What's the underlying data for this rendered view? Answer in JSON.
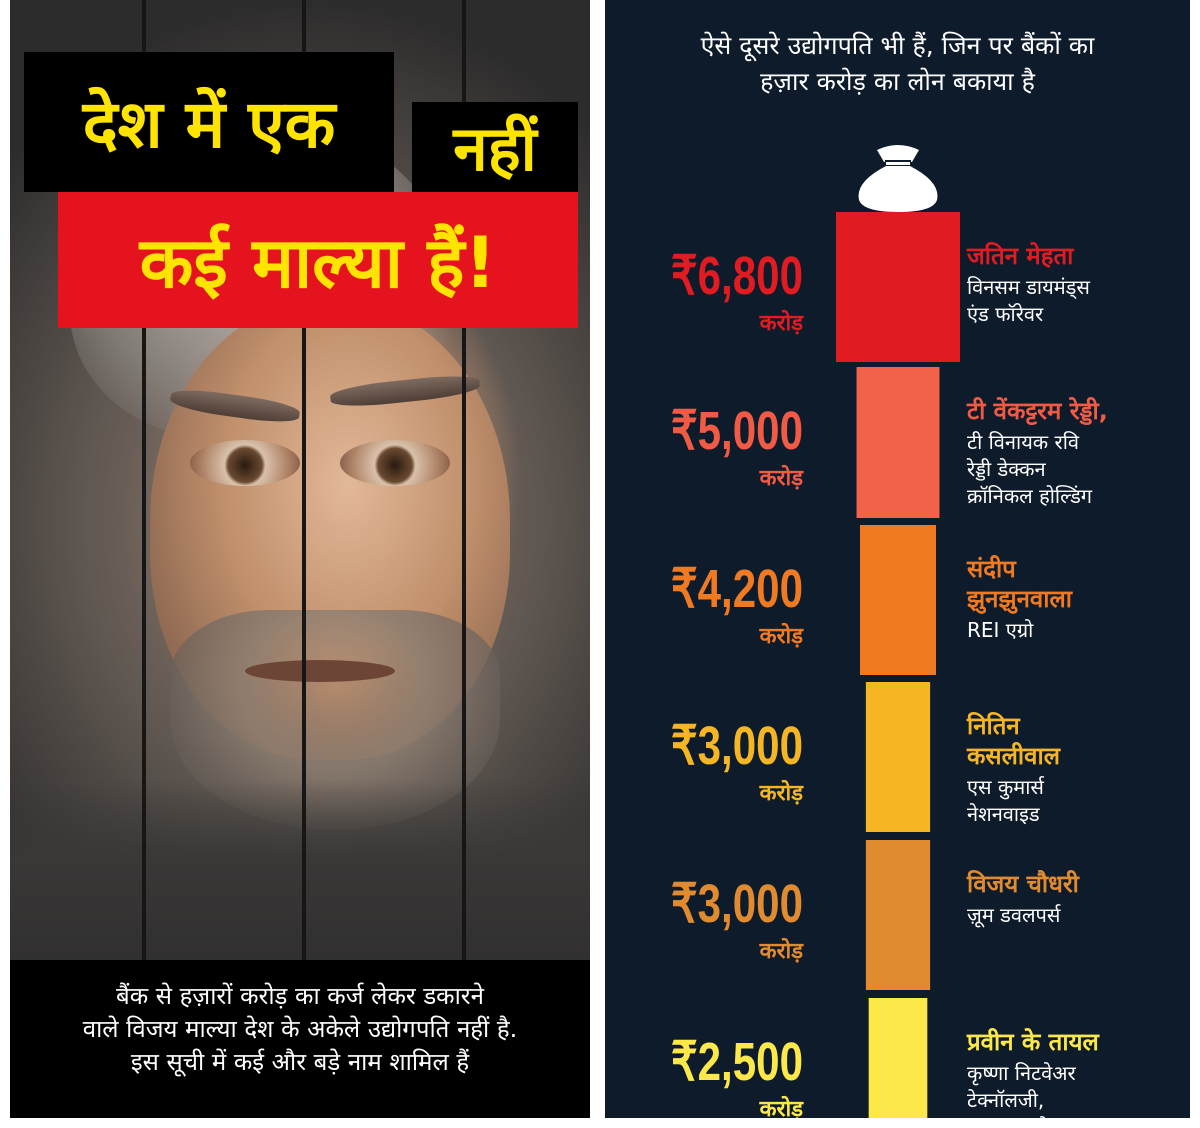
{
  "left": {
    "headline": {
      "line1": "देश में एक",
      "line2": "नहीं",
      "line3": "कई माल्या हैं!"
    },
    "caption": {
      "line1": "बैंक से हज़ारों करोड़ का कर्ज लेकर डकारने",
      "line2": "वाले विजय माल्या देश के अकेले उद्योगपति नहीं है.",
      "line3": "इस सूची में कई और बड़े नाम शामिल हैं"
    },
    "colors": {
      "headline_text": "#ffe400",
      "red_box": "#e5131e"
    },
    "photo_icon": "man-portrait"
  },
  "right": {
    "header": {
      "line1": "ऐसे दूसरे उद्योगपति भी हैं, जिन पर बैंकों का",
      "line2": "हज़ार करोड़ का लोन बकाया है"
    },
    "top_icon": "money-bag-icon"
  },
  "chart_data": {
    "type": "bar",
    "orientation": "vertical-stack",
    "unit_label": "करोड़",
    "currency_symbol": "₹",
    "items": [
      {
        "value": 6800,
        "amount": "₹6,800",
        "unit": "करोड़",
        "name": [
          "जतिन मेहता"
        ],
        "company": [
          "विनसम डायमंड्स",
          "एंड फॉरेवर"
        ],
        "color": "#e11b22",
        "amount_color": "#e11b22"
      },
      {
        "value": 5000,
        "amount": "₹5,000",
        "unit": "करोड़",
        "name": [
          "टी वेंकट्टरम रेड्डी,"
        ],
        "company": [
          "टी विनायक रवि",
          "रेड्डी डेक्कन",
          "क्रॉनिकल होल्डिंग"
        ],
        "color": "#f26149",
        "amount_color": "#f15a44"
      },
      {
        "value": 4200,
        "amount": "₹4,200",
        "unit": "करोड़",
        "name": [
          "संदीप",
          "झुनझुनवाला"
        ],
        "company": [
          "REI एग्रो"
        ],
        "color": "#f07a21",
        "amount_color": "#f07a21"
      },
      {
        "value": 3000,
        "amount": "₹3,000",
        "unit": "करोड़",
        "name": [
          "नितिन",
          "कसलीवाल"
        ],
        "company": [
          "एस कुमार्स",
          "नेशनवाइड"
        ],
        "color": "#f6b624",
        "amount_color": "#f6b624"
      },
      {
        "value": 3000,
        "amount": "₹3,000",
        "unit": "करोड़",
        "name": [
          "विजय चौधरी"
        ],
        "company": [
          "ज़ूम डवलपर्स"
        ],
        "color": "#e08b30",
        "amount_color": "#e08b30"
      },
      {
        "value": 2500,
        "amount": "₹2,500",
        "unit": "करोड़",
        "name": [
          "प्रवीन के तायल"
        ],
        "company": [
          "कृष्णा निटवेअर",
          "टेक्नॉलजी,",
          "जयभारत टेक्सटाइल"
        ],
        "color": "#fde84a",
        "amount_color": "#fde84a"
      }
    ]
  }
}
